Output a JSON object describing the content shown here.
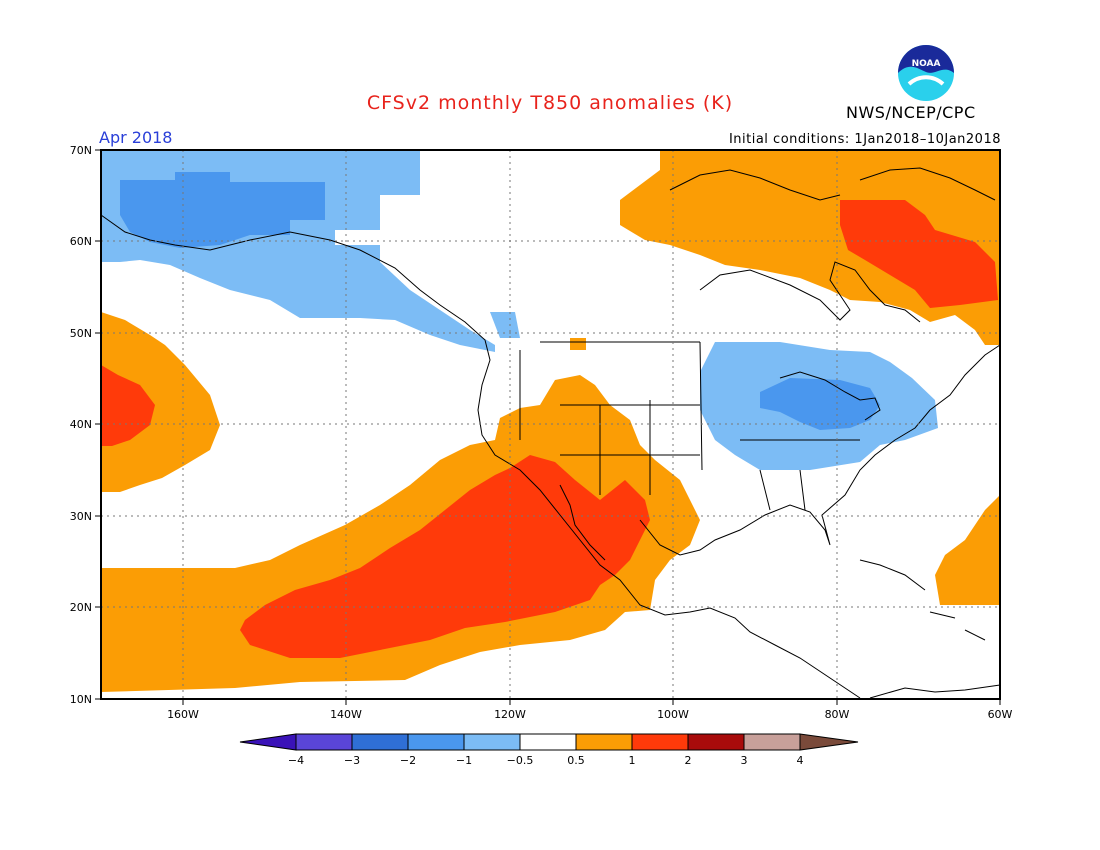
{
  "header": {
    "title": "CFSv2 monthly T850 anomalies (K)",
    "agency": "NWS/NCEP/CPC",
    "logo_text": "NOAA",
    "month": "Apr 2018",
    "initial_conditions": "Initial conditions: 1Jan2018–10Jan2018"
  },
  "axes": {
    "lat_labels": [
      "70N",
      "60N",
      "50N",
      "40N",
      "30N",
      "20N",
      "10N"
    ],
    "lon_labels": [
      "160W",
      "140W",
      "120W",
      "100W",
      "80W",
      "60W"
    ]
  },
  "colorbar": {
    "labels": [
      "−4",
      "−3",
      "−2",
      "−1",
      "−0.5",
      "0.5",
      "1",
      "2",
      "3",
      "4"
    ],
    "colors": [
      "#3a12b8",
      "#5a45d8",
      "#2f6fd6",
      "#4a97ee",
      "#7cbcf5",
      "#ffffff",
      "#fb9d05",
      "#ff3a0a",
      "#a80b0b",
      "#c8a09a",
      "#7a4a3a"
    ]
  },
  "colors": {
    "neg_light": "#7cbcf5",
    "neg_mid": "#4a97ee",
    "pos_light": "#fb9d05",
    "pos_mid": "#ff3a0a",
    "title": "#e8231c",
    "month": "#2a3fd8"
  }
}
